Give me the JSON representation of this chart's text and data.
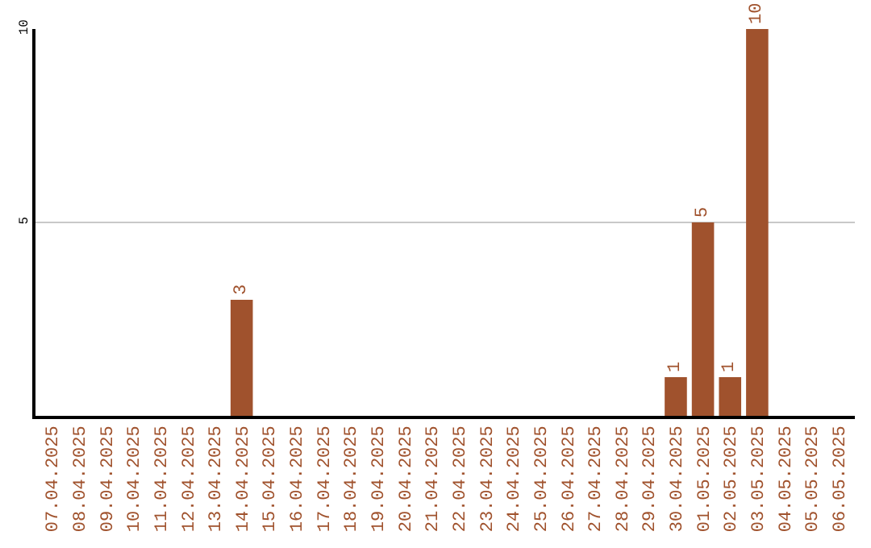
{
  "chart_data": {
    "type": "bar",
    "categories": [
      "07.04.2025",
      "08.04.2025",
      "09.04.2025",
      "10.04.2025",
      "11.04.2025",
      "12.04.2025",
      "13.04.2025",
      "14.04.2025",
      "15.04.2025",
      "16.04.2025",
      "17.04.2025",
      "18.04.2025",
      "19.04.2025",
      "20.04.2025",
      "21.04.2025",
      "22.04.2025",
      "23.04.2025",
      "24.04.2025",
      "25.04.2025",
      "26.04.2025",
      "27.04.2025",
      "28.04.2025",
      "29.04.2025",
      "30.04.2025",
      "01.05.2025",
      "02.05.2025",
      "03.05.2025",
      "04.05.2025",
      "05.05.2025",
      "06.05.2025"
    ],
    "values": [
      0,
      0,
      0,
      0,
      0,
      0,
      0,
      3,
      0,
      0,
      0,
      0,
      0,
      0,
      0,
      0,
      0,
      0,
      0,
      0,
      0,
      0,
      0,
      1,
      5,
      1,
      10,
      0,
      0,
      0
    ],
    "value_labels": [
      null,
      null,
      null,
      null,
      null,
      null,
      null,
      "3",
      null,
      null,
      null,
      null,
      null,
      null,
      null,
      null,
      null,
      null,
      null,
      null,
      null,
      null,
      null,
      "1",
      "5",
      "1",
      "10",
      null,
      null,
      null
    ],
    "color": "#a0522d",
    "ylim": [
      0,
      10
    ],
    "yticks": [
      5,
      10
    ],
    "grid": "y",
    "legend": false
  }
}
